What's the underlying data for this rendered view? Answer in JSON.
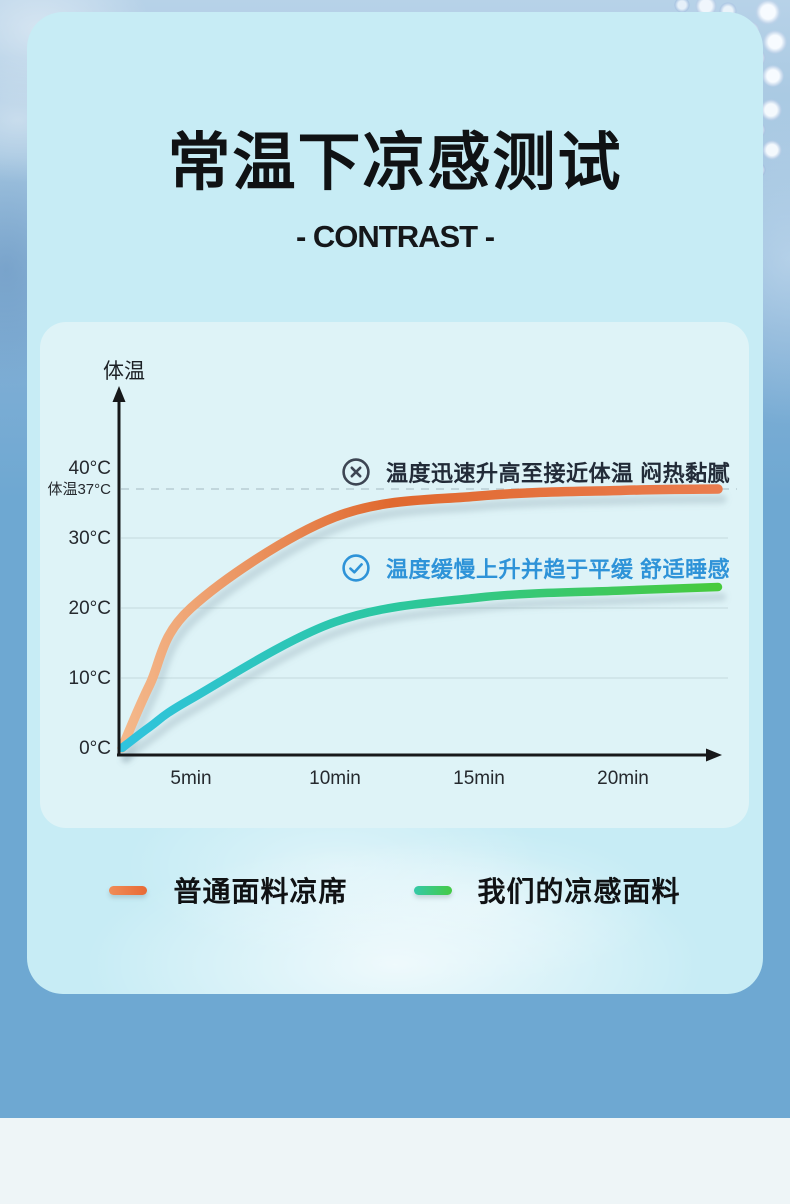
{
  "header": {
    "title": "常温下凉感测试",
    "subtitle": "CONTRAST",
    "subtitle_display": "- CONTRAST -"
  },
  "chart_data": {
    "type": "line",
    "title": "常温下凉感测试",
    "ylabel": "体温",
    "x_unit": "min",
    "x_ticks": [
      {
        "label": "5min",
        "minutes": 5
      },
      {
        "label": "10min",
        "minutes": 10
      },
      {
        "label": "15min",
        "minutes": 15
      },
      {
        "label": "20min",
        "minutes": 20
      }
    ],
    "y_ticks": [
      {
        "label": "40°C",
        "temp": 40
      },
      {
        "label": "30°C",
        "temp": 30
      },
      {
        "label": "20°C",
        "temp": 20
      },
      {
        "label": "10°C",
        "temp": 10
      },
      {
        "label": "0°C",
        "temp": 0
      }
    ],
    "reference_line": {
      "label": "体温37°C",
      "temp": 37,
      "style": "dashed"
    },
    "gridline_temps": [
      30,
      20,
      10
    ],
    "ylim": [
      0,
      44
    ],
    "xlim_minutes": [
      0,
      23.3
    ],
    "grid": true,
    "legend_position": "below",
    "series": [
      {
        "name": "普通面料凉席",
        "colors": [
          "#f4b98c",
          "#e0692f",
          "#ea7c4e"
        ],
        "points": [
          [
            0,
            0
          ],
          [
            2,
            9
          ],
          [
            5,
            20
          ],
          [
            10,
            33
          ],
          [
            15,
            36
          ],
          [
            20,
            36.8
          ],
          [
            23.3,
            37
          ]
        ]
      },
      {
        "name": "我们的凉感面料",
        "colors": [
          "#30c3de",
          "#2bc7a0",
          "#47ca3c"
        ],
        "points": [
          [
            0,
            0
          ],
          [
            2,
            3
          ],
          [
            5,
            7
          ],
          [
            10,
            18
          ],
          [
            15,
            21.5
          ],
          [
            20,
            22.5
          ],
          [
            23.3,
            23
          ]
        ]
      }
    ],
    "annotations": [
      {
        "icon": "cross-circle",
        "text": "温度迅速升高至接近体温 闷热黏腻",
        "color": "#222b38"
      },
      {
        "icon": "check-circle",
        "text": "温度缓慢上升并趋于平缓 舒适睡感",
        "color": "#2e93d8"
      }
    ]
  },
  "legend": {
    "items": [
      {
        "label": "普通面料凉席",
        "swatch_colors": [
          "#f08c58",
          "#e86a35"
        ]
      },
      {
        "label": "我们的凉感面料",
        "swatch_colors": [
          "#35c9a8",
          "#44ca45"
        ]
      }
    ]
  },
  "colors": {
    "panel_bg": "#c7ecf5",
    "card_bg": "#def3f7",
    "outer_blue": "#6ea8d2",
    "bottom_strip": "#eef5f7",
    "title_text": "#101214",
    "axis": "#17181a",
    "gridline": "#c9dfe2",
    "reference_dash": "#b7cdd3"
  }
}
